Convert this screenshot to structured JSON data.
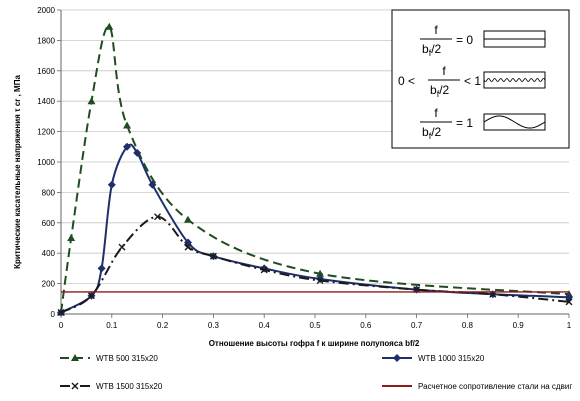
{
  "chart_data": {
    "type": "line",
    "xlabel": "Отношение высоты гофра f к ширине полупояса bf/2",
    "ylabel": "Критические касательные напряжения τ cr , МПа",
    "xlim": [
      0,
      1
    ],
    "ylim": [
      0,
      2000
    ],
    "x_ticks": [
      "0",
      "0.1",
      "0.2",
      "0.3",
      "0.4",
      "0.5",
      "0.6",
      "0.7",
      "0.8",
      "0.9",
      "1"
    ],
    "y_ticks": [
      "0",
      "200",
      "400",
      "600",
      "800",
      "1000",
      "1200",
      "1400",
      "1600",
      "1800",
      "2000"
    ],
    "grid": "horizontal",
    "series": [
      {
        "name": "WTB 500 315х20",
        "color": "#1f4d1f",
        "dash": "long-dash",
        "marker": "triangle",
        "x": [
          0,
          0.02,
          0.06,
          0.095,
          0.13,
          0.25,
          0.51,
          1.0
        ],
        "y": [
          10,
          500,
          1400,
          1890,
          1240,
          620,
          265,
          130
        ]
      },
      {
        "name": "WTB 1000 315х20",
        "color": "#1f2f6e",
        "dash": "solid",
        "marker": "diamond",
        "x": [
          0,
          0.06,
          0.08,
          0.1,
          0.13,
          0.15,
          0.18,
          0.25,
          0.3,
          0.4,
          0.51,
          0.7,
          0.85,
          1.0
        ],
        "y": [
          10,
          120,
          300,
          850,
          1100,
          1060,
          850,
          470,
          380,
          300,
          230,
          160,
          130,
          110
        ]
      },
      {
        "name": "WTB 1500 315х20",
        "color": "#1a1a1a",
        "dash": "dash-dot",
        "marker": "x",
        "x": [
          0,
          0.06,
          0.12,
          0.19,
          0.25,
          0.3,
          0.4,
          0.51,
          0.7,
          0.85,
          1.0
        ],
        "y": [
          10,
          120,
          440,
          640,
          440,
          380,
          290,
          220,
          160,
          130,
          80
        ]
      },
      {
        "name": "Расчетное сопротивление стали на сдвиг",
        "color": "#8b1a1a",
        "dash": "solid",
        "marker": "none",
        "x": [
          0,
          1
        ],
        "y": [
          145,
          145
        ]
      }
    ],
    "legend_position": "bottom",
    "inset": {
      "rows": [
        {
          "numerator": "f",
          "denominator": "b",
          "sub": "f",
          "den_tail": "/2",
          "prefix": "",
          "relation": "= 0",
          "panel": "flat"
        },
        {
          "numerator": "f",
          "denominator": "b",
          "sub": "f",
          "den_tail": "/2",
          "prefix": "0 <",
          "relation": "< 1",
          "panel": "shallow-wave"
        },
        {
          "numerator": "f",
          "denominator": "b",
          "sub": "f",
          "den_tail": "/2",
          "prefix": "",
          "relation": "= 1",
          "panel": "deep-wave"
        }
      ]
    }
  }
}
